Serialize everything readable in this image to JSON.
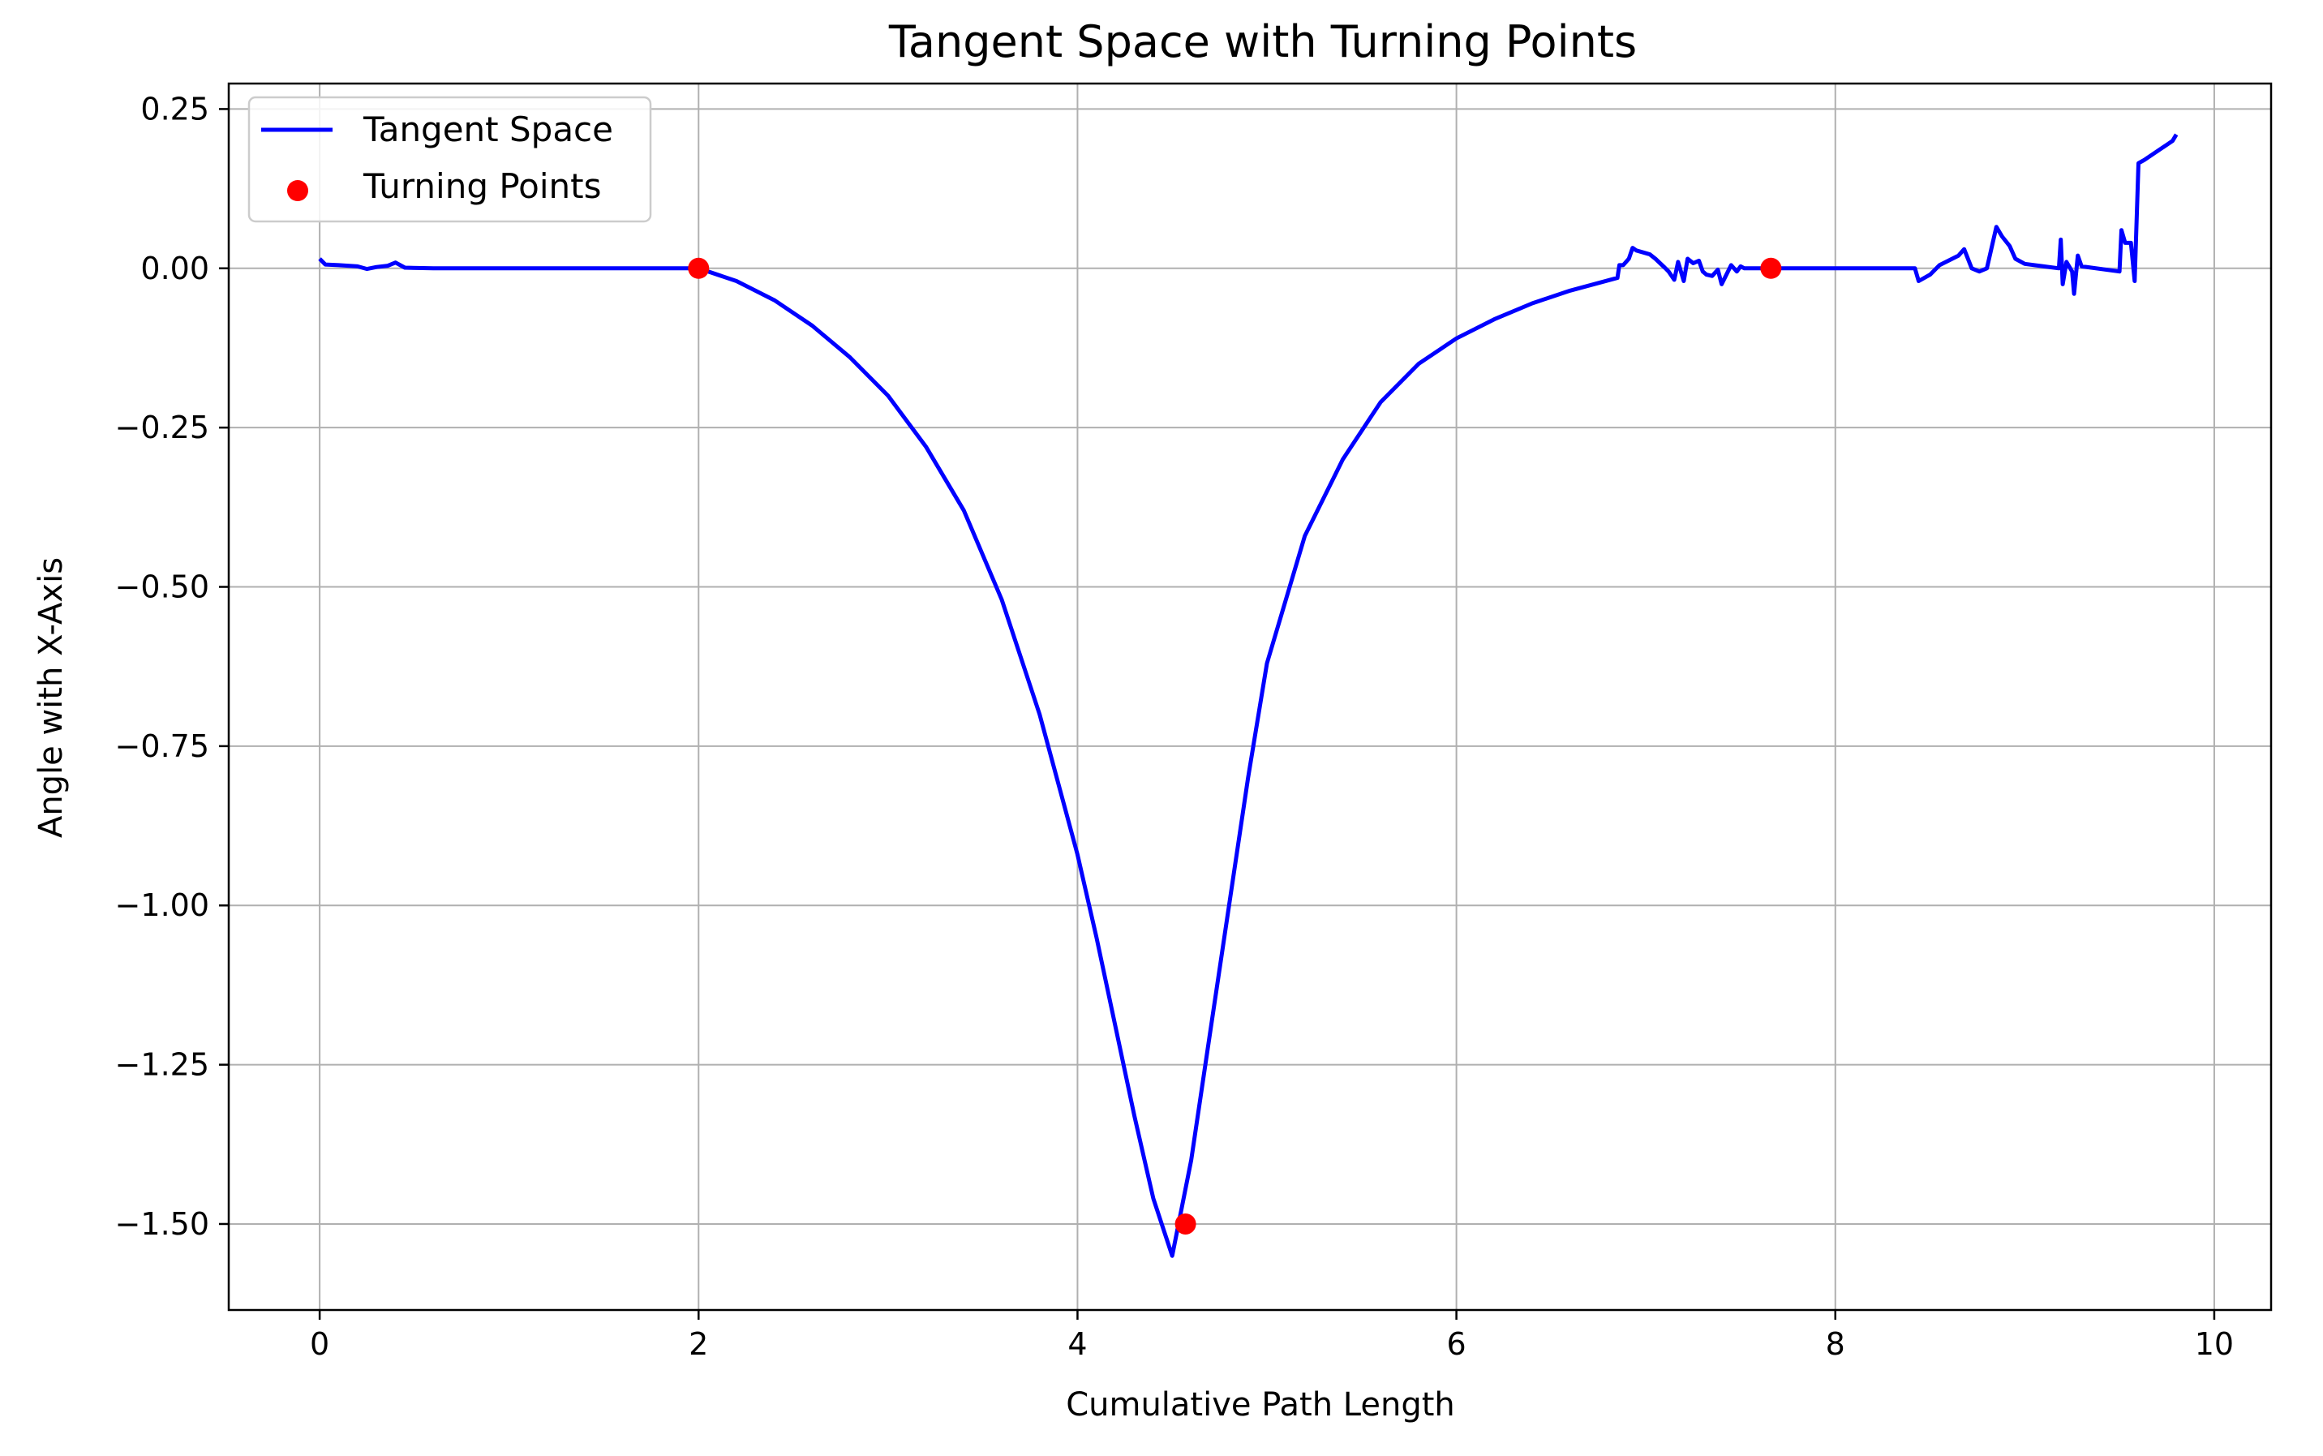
{
  "chart_data": {
    "type": "line",
    "title": "Tangent Space with Turning Points",
    "xlabel": "Cumulative Path Length",
    "ylabel": "Angle with X-Axis",
    "xlim": [
      -0.48,
      10.3
    ],
    "ylim": [
      -1.635,
      0.29
    ],
    "xticks": [
      0,
      2,
      4,
      6,
      8,
      10
    ],
    "yticks": [
      0.25,
      0.0,
      -0.25,
      -0.5,
      -0.75,
      -1.0,
      -1.25,
      -1.5
    ],
    "xtick_labels": [
      "0",
      "2",
      "4",
      "6",
      "8",
      "10"
    ],
    "ytick_labels": [
      "0.25",
      "0.00",
      "−0.25",
      "−0.50",
      "−0.75",
      "−1.00",
      "−1.25",
      "−1.50"
    ],
    "grid": true,
    "legend_position": "top-left",
    "series": [
      {
        "name": "Tangent Space",
        "kind": "line",
        "color": "#0000ff",
        "x": [
          0.0,
          0.03,
          0.1,
          0.2,
          0.25,
          0.3,
          0.36,
          0.4,
          0.45,
          0.6,
          1.0,
          1.5,
          2.0,
          2.2,
          2.4,
          2.6,
          2.8,
          3.0,
          3.2,
          3.4,
          3.6,
          3.8,
          4.0,
          4.1,
          4.2,
          4.3,
          4.4,
          4.5,
          4.6,
          4.7,
          4.8,
          4.9,
          5.0,
          5.2,
          5.4,
          5.6,
          5.8,
          6.0,
          6.2,
          6.4,
          6.6,
          6.85,
          6.86,
          6.88,
          6.91,
          6.93,
          6.95,
          7.02,
          7.05,
          7.1,
          7.12,
          7.15,
          7.17,
          7.2,
          7.22,
          7.25,
          7.28,
          7.3,
          7.32,
          7.35,
          7.38,
          7.4,
          7.45,
          7.48,
          7.5,
          7.52,
          7.55,
          7.7,
          8.0,
          8.2,
          8.42,
          8.44,
          8.5,
          8.55,
          8.65,
          8.68,
          8.72,
          8.76,
          8.8,
          8.85,
          8.88,
          8.92,
          8.95,
          9.0,
          9.1,
          9.18,
          9.19,
          9.2,
          9.22,
          9.25,
          9.26,
          9.28,
          9.3,
          9.5,
          9.51,
          9.53,
          9.56,
          9.58,
          9.6,
          9.63,
          9.78,
          9.8
        ],
        "y": [
          0.015,
          0.006,
          0.005,
          0.003,
          -0.001,
          0.002,
          0.004,
          0.009,
          0.001,
          0.0,
          0.0,
          0.0,
          0.0,
          -0.02,
          -0.05,
          -0.09,
          -0.14,
          -0.2,
          -0.28,
          -0.38,
          -0.52,
          -0.7,
          -0.92,
          -1.05,
          -1.19,
          -1.33,
          -1.46,
          -1.55,
          -1.4,
          -1.2,
          -1.0,
          -0.8,
          -0.62,
          -0.42,
          -0.3,
          -0.21,
          -0.15,
          -0.11,
          -0.08,
          -0.055,
          -0.035,
          -0.015,
          0.005,
          0.005,
          0.015,
          0.032,
          0.028,
          0.022,
          0.015,
          0.001,
          -0.005,
          -0.018,
          0.01,
          -0.02,
          0.015,
          0.008,
          0.012,
          -0.005,
          -0.01,
          -0.012,
          -0.002,
          -0.025,
          0.005,
          -0.005,
          0.003,
          0.0,
          0.0,
          0.0,
          0.0,
          0.0,
          0.0,
          -0.02,
          -0.01,
          0.005,
          0.02,
          0.03,
          0.0,
          -0.005,
          0.0,
          0.065,
          0.05,
          0.035,
          0.015,
          0.007,
          0.003,
          0.0,
          0.045,
          -0.025,
          0.01,
          -0.005,
          -0.04,
          0.02,
          0.003,
          -0.005,
          0.06,
          0.04,
          0.04,
          -0.02,
          0.165,
          0.17,
          0.2,
          0.21
        ]
      },
      {
        "name": "Turning Points",
        "kind": "scatter",
        "color": "#ff0000",
        "x": [
          2.0,
          4.57,
          7.66
        ],
        "y": [
          0.0,
          -1.5,
          0.0
        ]
      }
    ]
  }
}
